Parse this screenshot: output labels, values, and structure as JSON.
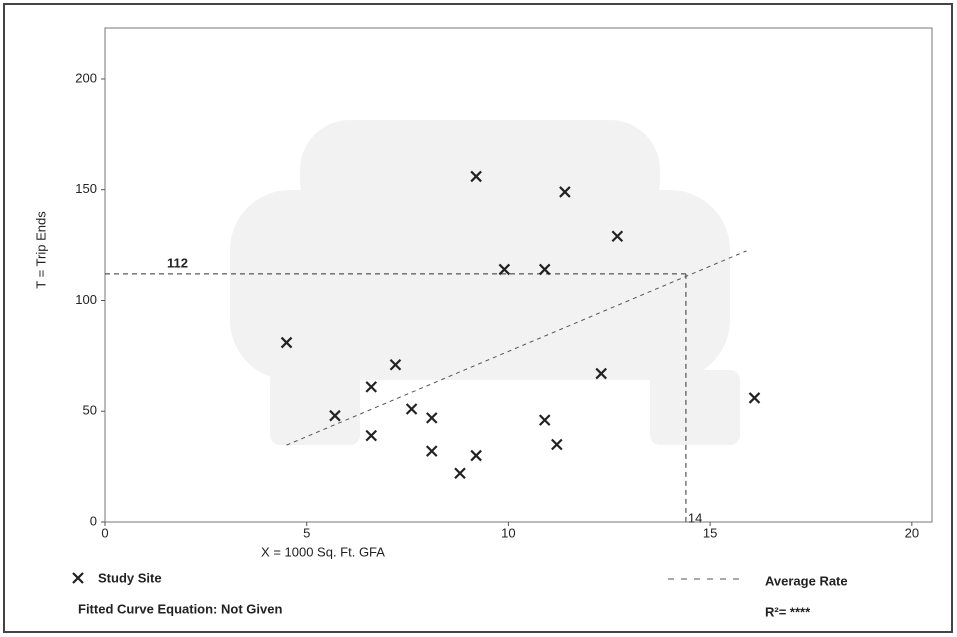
{
  "chart_data": {
    "type": "scatter",
    "xlabel": "X = 1000 Sq. Ft. GFA",
    "ylabel": "T = Trip Ends",
    "xlim": [
      0,
      20.5
    ],
    "ylim": [
      0,
      223
    ],
    "xticks": [
      0,
      5,
      10,
      15,
      20
    ],
    "yticks": [
      0,
      50,
      100,
      150,
      200
    ],
    "series": [
      {
        "name": "Study Site",
        "color": "#222222",
        "x": [
          4.5,
          5.7,
          6.6,
          6.6,
          7.2,
          7.6,
          8.1,
          8.1,
          8.8,
          9.2,
          9.2,
          9.9,
          10.9,
          10.9,
          11.2,
          11.4,
          12.3,
          12.7,
          16.1
        ],
        "values": [
          81,
          48,
          61,
          39,
          71,
          51,
          47,
          32,
          22,
          30,
          156,
          114,
          114,
          46,
          35,
          149,
          67,
          129,
          56
        ]
      },
      {
        "name": "Average Rate",
        "color": "#555555",
        "type": "line",
        "dashed": true,
        "x": [
          4.5,
          15.9
        ],
        "values": [
          34.7,
          122.4
        ]
      }
    ],
    "annotation": {
      "x": 14.4,
      "y": 112,
      "x_label": "14",
      "y_label": "112"
    },
    "fitted_curve": "Fitted Curve Equation: Not Given",
    "r_squared": "R²= ****"
  }
}
